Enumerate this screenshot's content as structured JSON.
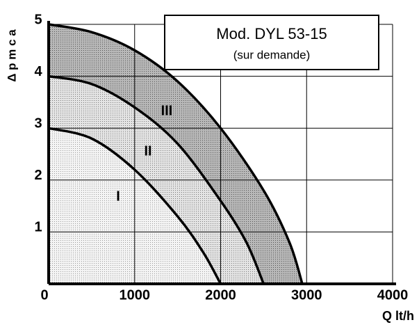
{
  "chart_data": {
    "type": "line",
    "title": "Mod. DYL 53-15",
    "subtitle": "(sur demande)",
    "y_label": "Δ p m c a",
    "x_label": "Q lt/h",
    "xlim": [
      0,
      4000
    ],
    "xticks": [
      0,
      1000,
      2000,
      3000,
      4000
    ],
    "ylim": [
      0,
      5
    ],
    "yticks": [
      1,
      2,
      3,
      4,
      5
    ],
    "grid": true,
    "series": [
      {
        "name": "III",
        "color": "#000000",
        "x": [
          0,
          500,
          1000,
          1500,
          2000,
          2500,
          2800,
          2950
        ],
        "values": [
          5,
          4.85,
          4.5,
          3.9,
          3.0,
          1.8,
          0.8,
          0
        ]
      },
      {
        "name": "II",
        "color": "#000000",
        "x": [
          0,
          500,
          1000,
          1500,
          2000,
          2300,
          2500
        ],
        "values": [
          4,
          3.85,
          3.4,
          2.7,
          1.6,
          0.8,
          0
        ]
      },
      {
        "name": "I",
        "color": "#000000",
        "x": [
          0,
          500,
          1000,
          1500,
          1800,
          2000
        ],
        "values": [
          3,
          2.8,
          2.2,
          1.3,
          0.6,
          0
        ]
      }
    ]
  }
}
